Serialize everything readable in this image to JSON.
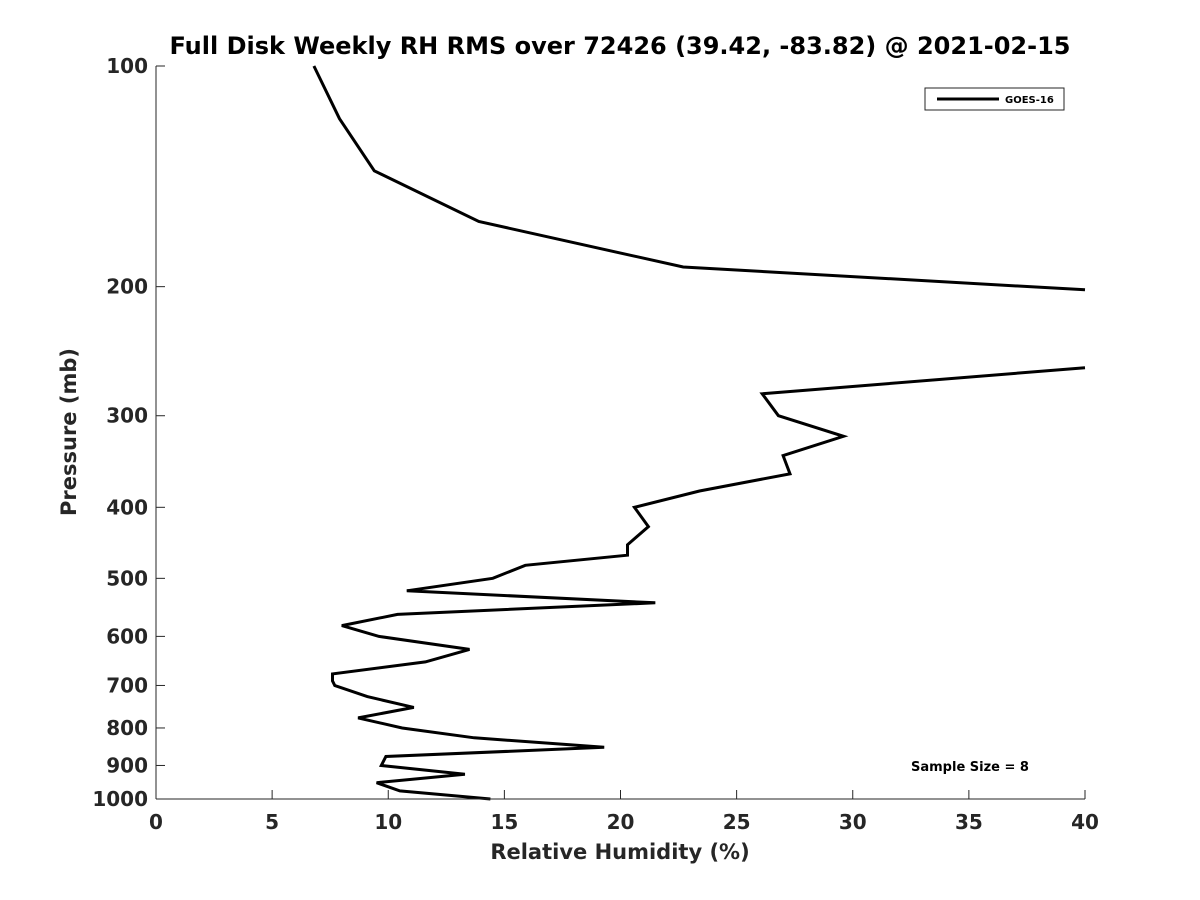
{
  "chart_data": {
    "type": "line",
    "title": "Full Disk Weekly RH RMS over 72426 (39.42, -83.82) @ 2021-02-15",
    "xlabel": "Relative Humidity (%)",
    "ylabel": "Pressure (mb)",
    "xlim": [
      0,
      40
    ],
    "ylim": [
      100,
      1000
    ],
    "y_scale": "log",
    "y_direction": "reversed",
    "x_ticks": [
      "0",
      "5",
      "10",
      "15",
      "20",
      "25",
      "30",
      "35",
      "40"
    ],
    "y_ticks": [
      "100",
      "200",
      "300",
      "400",
      "500",
      "600",
      "700",
      "800",
      "900",
      "1000"
    ],
    "grid": false,
    "legend_position": "top-right",
    "annotation": "Sample Size = 8",
    "series": [
      {
        "name": "GOES-16",
        "color": "#000000",
        "segments": [
          [
            {
              "x": 6.8,
              "y": 100
            },
            {
              "x": 7.9,
              "y": 118
            },
            {
              "x": 9.4,
              "y": 139
            },
            {
              "x": 13.9,
              "y": 163
            },
            {
              "x": 22.7,
              "y": 188
            },
            {
              "x": 40.0,
              "y": 202
            }
          ],
          [
            {
              "x": 40.0,
              "y": 258
            },
            {
              "x": 26.1,
              "y": 280
            },
            {
              "x": 26.8,
              "y": 300
            },
            {
              "x": 29.6,
              "y": 320
            },
            {
              "x": 27.0,
              "y": 340
            },
            {
              "x": 27.3,
              "y": 360
            },
            {
              "x": 23.4,
              "y": 380
            },
            {
              "x": 20.6,
              "y": 400
            },
            {
              "x": 21.2,
              "y": 425
            },
            {
              "x": 20.3,
              "y": 450
            },
            {
              "x": 20.3,
              "y": 465
            },
            {
              "x": 15.9,
              "y": 480
            },
            {
              "x": 14.5,
              "y": 500
            },
            {
              "x": 10.8,
              "y": 520
            },
            {
              "x": 21.5,
              "y": 540
            },
            {
              "x": 10.4,
              "y": 560
            },
            {
              "x": 8.0,
              "y": 580
            },
            {
              "x": 9.6,
              "y": 600
            },
            {
              "x": 13.5,
              "y": 625
            },
            {
              "x": 11.6,
              "y": 650
            },
            {
              "x": 7.6,
              "y": 675
            },
            {
              "x": 7.6,
              "y": 690
            },
            {
              "x": 7.7,
              "y": 700
            },
            {
              "x": 9.1,
              "y": 725
            },
            {
              "x": 11.1,
              "y": 750
            },
            {
              "x": 8.7,
              "y": 775
            },
            {
              "x": 10.6,
              "y": 800
            },
            {
              "x": 13.7,
              "y": 825
            },
            {
              "x": 19.3,
              "y": 850
            },
            {
              "x": 9.9,
              "y": 875
            },
            {
              "x": 9.7,
              "y": 900
            },
            {
              "x": 13.3,
              "y": 925
            },
            {
              "x": 9.5,
              "y": 950
            },
            {
              "x": 10.5,
              "y": 975
            },
            {
              "x": 14.4,
              "y": 1000
            }
          ]
        ]
      }
    ]
  }
}
